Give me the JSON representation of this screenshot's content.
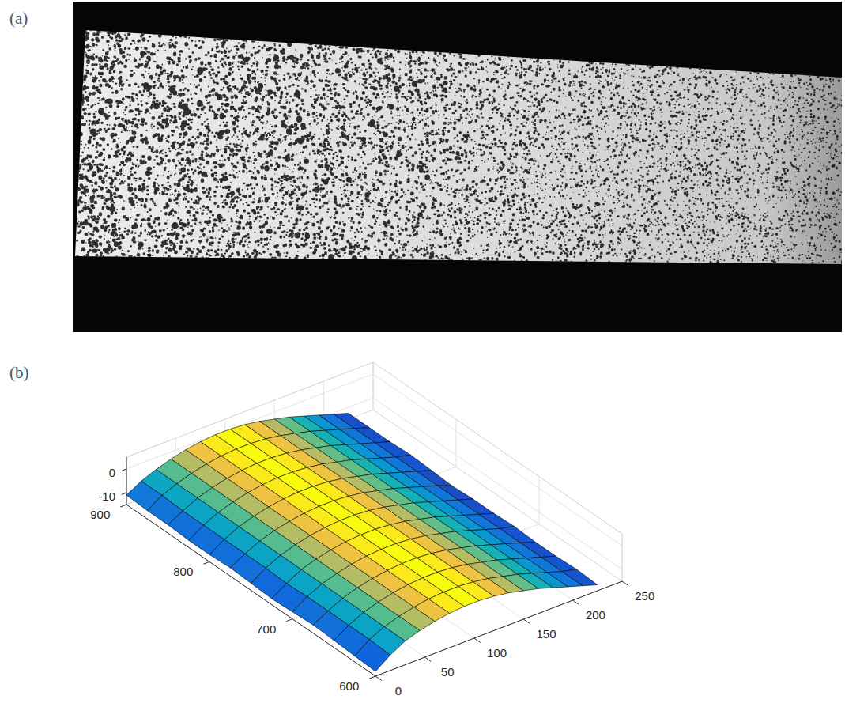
{
  "image": {
    "label": "(a)"
  },
  "chart_data": {
    "type": "surface",
    "label": "(b)",
    "x": [
      0,
      15,
      30,
      45,
      60,
      75,
      90,
      105,
      120,
      135,
      150,
      165,
      180,
      195,
      210,
      225
    ],
    "y": [
      600,
      625,
      650,
      675,
      700,
      725,
      750,
      775,
      800,
      825,
      850,
      875,
      900
    ],
    "z": [
      [
        -13,
        -8.5,
        -5,
        -3,
        -1.5,
        -0.5,
        0,
        0,
        -0.5,
        -1.5,
        -3,
        -4.5,
        -6.5,
        -8.5,
        -10.5,
        -12.5
      ],
      [
        -12.5,
        -8,
        -5,
        -3,
        -1.5,
        -0.5,
        0,
        0,
        -0.5,
        -1.5,
        -3,
        -4.5,
        -6.5,
        -8.5,
        -10.5,
        -12
      ],
      [
        -12,
        -8,
        -5,
        -3,
        -1.5,
        -0.5,
        0,
        0,
        -0.5,
        -1.5,
        -3,
        -4.5,
        -6.5,
        -8.5,
        -10.5,
        -12.5
      ],
      [
        -11.5,
        -8,
        -5,
        -3,
        -1.5,
        -0.5,
        0,
        0,
        -0.5,
        -1.5,
        -3,
        -4.5,
        -6.5,
        -8.5,
        -10.5,
        -12.5
      ],
      [
        -12,
        -8,
        -5,
        -3,
        -1.5,
        -0.5,
        0,
        0,
        -0.5,
        -1.5,
        -3,
        -4.5,
        -6.5,
        -8.5,
        -10.5,
        -12
      ],
      [
        -12.5,
        -8.5,
        -5,
        -3,
        -1.5,
        -0.5,
        0,
        0,
        -0.5,
        -1.5,
        -3,
        -4.5,
        -6.5,
        -8.5,
        -10.5,
        -12.5
      ],
      [
        -12,
        -8,
        -5,
        -3,
        -1.5,
        -0.5,
        0,
        0,
        -0.5,
        -1.5,
        -3,
        -4.5,
        -6.5,
        -8.5,
        -10.5,
        -12.5
      ],
      [
        -11.5,
        -8,
        -5,
        -3,
        -1.5,
        -0.5,
        0,
        0,
        -0.5,
        -1.5,
        -3,
        -4.5,
        -6.5,
        -8.5,
        -10.5,
        -13
      ],
      [
        -12,
        -8,
        -5,
        -3,
        -1.5,
        -0.5,
        0,
        0,
        -0.5,
        -1.5,
        -3,
        -4.5,
        -6.5,
        -8.5,
        -10.5,
        -12.5
      ],
      [
        -12,
        -8,
        -5,
        -3,
        -1.5,
        -0.5,
        0,
        0,
        -0.5,
        -1.5,
        -3,
        -4.5,
        -6.5,
        -8.5,
        -10.5,
        -12
      ],
      [
        -11.5,
        -8,
        -5,
        -3,
        -1.5,
        -0.5,
        0,
        0,
        -0.5,
        -1.5,
        -3,
        -4.5,
        -6.5,
        -8.5,
        -10.5,
        -12.5
      ],
      [
        -11.5,
        -7.5,
        -5,
        -3,
        -1.5,
        -0.5,
        0,
        0,
        -0.5,
        -1.5,
        -3,
        -4.5,
        -6.5,
        -8.5,
        -10.5,
        -12.5
      ],
      [
        -11,
        -7.5,
        -5,
        -3,
        -1.5,
        -0.5,
        0,
        0,
        -0.5,
        -1.5,
        -3,
        -4.5,
        -6.5,
        -8.5,
        -10.5,
        -12.5
      ]
    ],
    "xlim": [
      0,
      250
    ],
    "ylim": [
      600,
      900
    ],
    "zlim": [
      -15,
      5
    ],
    "xticks": [
      0,
      50,
      100,
      150,
      200,
      250
    ],
    "yticks": [
      600,
      700,
      800,
      900
    ],
    "zticks": [
      -10,
      0
    ],
    "grid": true
  }
}
